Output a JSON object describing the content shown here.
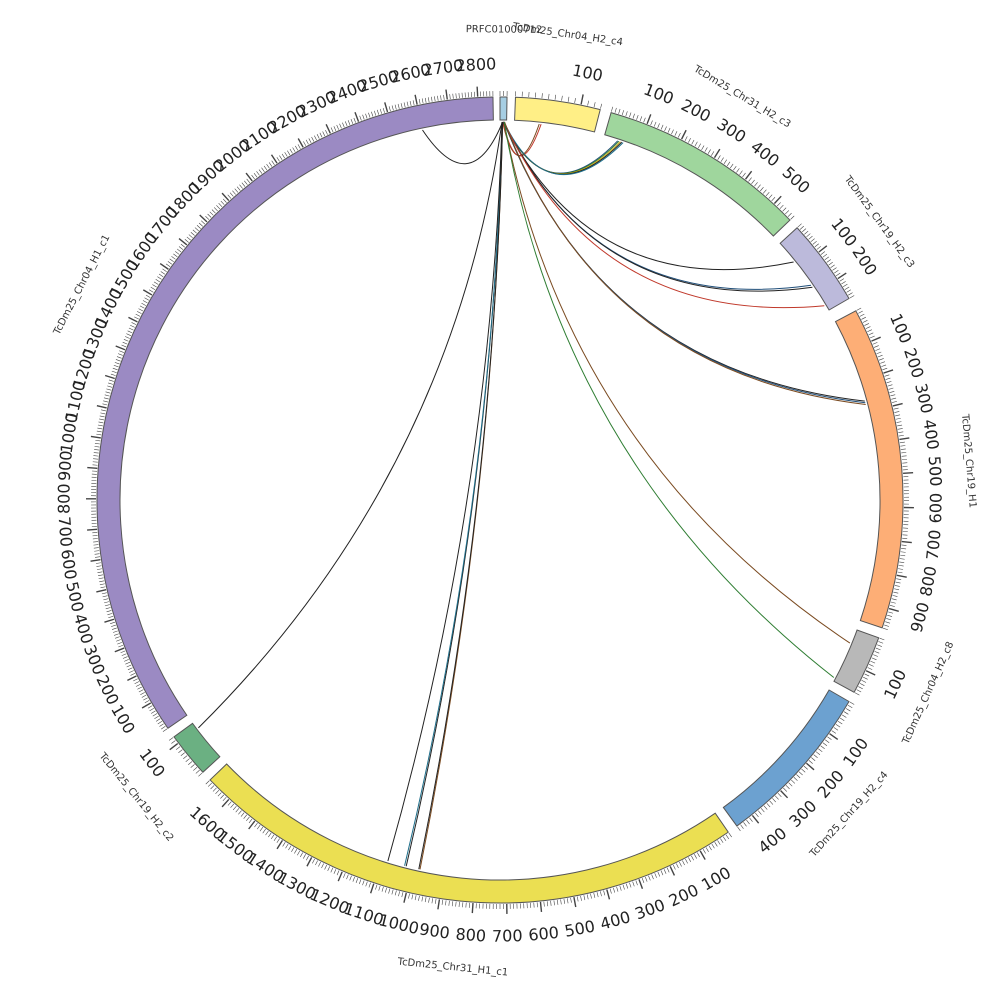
{
  "segments": [
    {
      "name": "PRFC01000712",
      "length": 20,
      "color": "#a6cee3",
      "start_angle": 0.0,
      "span_angle": 1.0
    },
    {
      "name": "TcDm25_Chr04_H2_c4",
      "length": 130,
      "color": "#ffef86",
      "start_angle": 2.2,
      "span_angle": 12.2
    },
    {
      "name": "TcDm25_Chr31_H2_c3",
      "length": 560,
      "color": "#9fd69d",
      "start_angle": 16.0,
      "span_angle": 30.0
    },
    {
      "name": "TcDm25_Chr19_H2_c3",
      "length": 270,
      "color": "#bcbadb",
      "start_angle": 47.5,
      "span_angle": 12.5
    },
    {
      "name": "TcDm25_Chr19_H1",
      "length": 960,
      "color": "#fdae76",
      "start_angle": 62.0,
      "span_angle": 46.5
    },
    {
      "name": "TcDm25_Chr04_H2_c8",
      "length": 170,
      "color": "#b8b8b8",
      "start_angle": 110.0,
      "span_angle": 8.5
    },
    {
      "name": "TcDm25_Chr19_H2_c4",
      "length": 450,
      "color": "#6ca1d0",
      "start_angle": 120.0,
      "span_angle": 24.0
    },
    {
      "name": "TcDm25_Chr31_H1_c1",
      "length": 1680,
      "color": "#ebdf52",
      "start_angle": 145.5,
      "span_angle": 80.5
    },
    {
      "name": "TcDm25_Chr19_H2_c2",
      "length": 120,
      "color": "#6bb082",
      "start_angle": 227.5,
      "span_angle": 6.5
    },
    {
      "name": "TcDm25_Chr04_H1_c1",
      "length": 2850,
      "color": "#9b8ac3",
      "start_angle": 235.5,
      "span_angle": 123.5
    }
  ],
  "tick_labels": [
    {
      "segment": "TcDm25_Chr04_H2_c4",
      "values": [
        "100"
      ]
    },
    {
      "segment": "TcDm25_Chr31_H2_c3",
      "values": [
        "100",
        "200",
        "300",
        "400",
        "500"
      ]
    },
    {
      "segment": "TcDm25_Chr19_H2_c3",
      "values": [
        "100",
        "200"
      ]
    },
    {
      "segment": "TcDm25_Chr19_H1",
      "values": [
        "100",
        "200",
        "300",
        "400",
        "500",
        "600",
        "700",
        "800",
        "900"
      ]
    },
    {
      "segment": "TcDm25_Chr04_H2_c8",
      "values": [
        "100"
      ]
    },
    {
      "segment": "TcDm25_Chr19_H2_c4",
      "values": [
        "100",
        "200",
        "300",
        "400"
      ]
    },
    {
      "segment": "TcDm25_Chr31_H1_c1",
      "values": [
        "100",
        "200",
        "300",
        "400",
        "500",
        "600",
        "700",
        "800",
        "900",
        "1000",
        "1100",
        "1200",
        "1300",
        "1400",
        "1500",
        "1600"
      ]
    },
    {
      "segment": "TcDm25_Chr19_H2_c2",
      "values": [
        "100"
      ]
    },
    {
      "segment": "TcDm25_Chr04_H1_c1",
      "values": [
        "100",
        "200",
        "300",
        "400",
        "500",
        "600",
        "700",
        "800",
        "900",
        "1000",
        "1100",
        "1200",
        "1300",
        "1400",
        "1500",
        "1600",
        "1700",
        "1800",
        "1900",
        "2000",
        "2100",
        "2200",
        "2300",
        "2400",
        "2500",
        "2600",
        "2700",
        "2800"
      ]
    }
  ],
  "links": [
    {
      "from": "PRFC01000712",
      "from_pos": 8,
      "to": "TcDm25_Chr04_H1_c1",
      "to_pos": 2600,
      "color": "#222222"
    },
    {
      "from": "PRFC01000712",
      "from_pos": 8,
      "to": "TcDm25_Chr04_H2_c4",
      "to_pos": 40,
      "color": "#7a4a20"
    },
    {
      "from": "PRFC01000712",
      "from_pos": 9,
      "to": "TcDm25_Chr04_H2_c4",
      "to_pos": 43,
      "color": "#c0392b"
    },
    {
      "from": "PRFC01000712",
      "from_pos": 10,
      "to": "TcDm25_Chr31_H2_c3",
      "to_pos": 40,
      "color": "#1f4e79"
    },
    {
      "from": "PRFC01000712",
      "from_pos": 10,
      "to": "TcDm25_Chr31_H2_c3",
      "to_pos": 44,
      "color": "#2e7d32"
    },
    {
      "from": "PRFC01000712",
      "from_pos": 11,
      "to": "TcDm25_Chr31_H2_c3",
      "to_pos": 48,
      "color": "#d4ac0d"
    },
    {
      "from": "PRFC01000712",
      "from_pos": 11,
      "to": "TcDm25_Chr31_H2_c3",
      "to_pos": 52,
      "color": "#222222"
    },
    {
      "from": "PRFC01000712",
      "from_pos": 12,
      "to": "TcDm25_Chr31_H2_c3",
      "to_pos": 56,
      "color": "#1f6f8b"
    },
    {
      "from": "PRFC01000712",
      "from_pos": 9,
      "to": "TcDm25_Chr19_H2_c3",
      "to_pos": 75,
      "color": "#222222"
    },
    {
      "from": "PRFC01000712",
      "from_pos": 10,
      "to": "TcDm25_Chr19_H2_c3",
      "to_pos": 170,
      "color": "#1f4e79"
    },
    {
      "from": "PRFC01000712",
      "from_pos": 11,
      "to": "TcDm25_Chr19_H2_c3",
      "to_pos": 178,
      "color": "#222222"
    },
    {
      "from": "PRFC01000712",
      "from_pos": 12,
      "to": "TcDm25_Chr19_H2_c3",
      "to_pos": 250,
      "color": "#c0392b"
    },
    {
      "from": "PRFC01000712",
      "from_pos": 12,
      "to": "TcDm25_Chr19_H1",
      "to_pos": 265,
      "color": "#222222"
    },
    {
      "from": "PRFC01000712",
      "from_pos": 13,
      "to": "TcDm25_Chr19_H1",
      "to_pos": 270,
      "color": "#1f4e79"
    },
    {
      "from": "PRFC01000712",
      "from_pos": 14,
      "to": "TcDm25_Chr19_H1",
      "to_pos": 276,
      "color": "#7a4a20"
    },
    {
      "from": "PRFC01000712",
      "from_pos": 12,
      "to": "TcDm25_Chr04_H2_c8",
      "to_pos": 45,
      "color": "#7a4a20"
    },
    {
      "from": "PRFC01000712",
      "from_pos": 13,
      "to": "TcDm25_Chr04_H2_c8",
      "to_pos": 160,
      "color": "#2e7d32"
    },
    {
      "from": "PRFC01000712",
      "from_pos": 7,
      "to": "TcDm25_Chr31_H1_c1",
      "to_pos": 1020,
      "color": "#222222"
    },
    {
      "from": "PRFC01000712",
      "from_pos": 7,
      "to": "TcDm25_Chr31_H1_c1",
      "to_pos": 1025,
      "color": "#1f6f8b"
    },
    {
      "from": "PRFC01000712",
      "from_pos": 8,
      "to": "TcDm25_Chr31_H1_c1",
      "to_pos": 975,
      "color": "#7a4a20"
    },
    {
      "from": "PRFC01000712",
      "from_pos": 8,
      "to": "TcDm25_Chr31_H1_c1",
      "to_pos": 979,
      "color": "#222222"
    },
    {
      "from": "PRFC01000712",
      "from_pos": 6,
      "to": "TcDm25_Chr31_H1_c1",
      "to_pos": 1080,
      "color": "#222222"
    },
    {
      "from": "PRFC01000712",
      "from_pos": 6,
      "to": "TcDm25_Chr19_H2_c2",
      "to_pos": 100,
      "color": "#222222"
    }
  ]
}
